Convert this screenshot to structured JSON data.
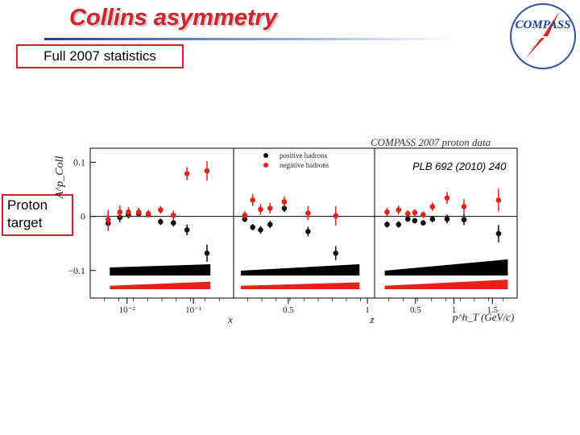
{
  "slide": {
    "title": "Collins asymmetry",
    "stats_label": "Full 2007 statistics",
    "target_label": "Proton target",
    "reference": "PLB 692 (2010) 240",
    "logo_text": "COMPASS"
  },
  "chart_data": {
    "type": "scatter",
    "title": "COMPASS 2007 proton data",
    "ylabel": "A^p_Coll",
    "ylim": [
      -0.145,
      0.12
    ],
    "yticks": [
      {
        "v": 0.1,
        "label": "0.1"
      },
      {
        "v": 0,
        "label": "0"
      },
      {
        "v": -0.1,
        "label": "−0.1"
      }
    ],
    "legend": [
      "positive hadrons",
      "negative hadrons"
    ],
    "legend_placement": "top-center",
    "colors": {
      "positive": "#111111",
      "negative": "#e2231a",
      "band_pos": "#000000",
      "band_neg": "#e2231a"
    },
    "panels": [
      {
        "xlabel": "x",
        "xscale": "log",
        "xlim": [
          0.0033,
          0.35
        ],
        "xticks": [
          {
            "v": 0.01,
            "label": "10⁻²"
          },
          {
            "v": 0.1,
            "label": "10⁻¹"
          }
        ],
        "series": [
          {
            "name": "positive hadrons",
            "x": [
              0.0052,
              0.0078,
              0.0105,
              0.015,
              0.021,
              0.032,
              0.05,
              0.08,
              0.16
            ],
            "y": [
              -0.013,
              -0.002,
              0.003,
              0.005,
              0.004,
              -0.01,
              -0.012,
              -0.025,
              -0.068
            ],
            "err": [
              0.013,
              0.009,
              0.007,
              0.006,
              0.006,
              0.006,
              0.007,
              0.01,
              0.016
            ]
          },
          {
            "name": "negative hadrons",
            "x": [
              0.0052,
              0.0078,
              0.0105,
              0.015,
              0.021,
              0.032,
              0.05,
              0.08,
              0.16
            ],
            "y": [
              -0.006,
              0.008,
              0.008,
              0.008,
              0.005,
              0.012,
              0.002,
              0.079,
              0.084
            ],
            "err": [
              0.018,
              0.012,
              0.009,
              0.008,
              0.007,
              0.007,
              0.009,
              0.012,
              0.018
            ]
          }
        ],
        "band_pos": [
          [
            0.0055,
            0.0009,
            0.01
          ],
          [
            0.18,
            0.0009,
            0.014
          ]
        ],
        "band_neg": [
          [
            0.0055,
            0.0009,
            0.005
          ],
          [
            0.18,
            0.0009,
            0.011
          ]
        ]
      },
      {
        "xlabel": "z",
        "xscale": "linear",
        "xlim": [
          0.18,
          1.02
        ],
        "xticks": [
          {
            "v": 0.5,
            "label": "0.5"
          },
          {
            "v": 1,
            "label": "1"
          }
        ],
        "series": [
          {
            "name": "positive hadrons",
            "x": [
              0.225,
              0.275,
              0.325,
              0.385,
              0.475,
              0.625,
              0.8
            ],
            "y": [
              -0.005,
              -0.02,
              -0.025,
              -0.015,
              0.015,
              -0.028,
              -0.068
            ],
            "err": [
              0.006,
              0.006,
              0.007,
              0.007,
              0.007,
              0.009,
              0.013
            ]
          },
          {
            "name": "negative hadrons",
            "x": [
              0.225,
              0.275,
              0.325,
              0.385,
              0.475,
              0.625,
              0.8
            ],
            "y": [
              0.002,
              0.03,
              0.013,
              0.015,
              0.027,
              0.006,
              0.001
            ],
            "err": [
              0.008,
              0.011,
              0.01,
              0.01,
              0.01,
              0.013,
              0.018
            ]
          }
        ],
        "band_pos": [
          [
            0.2,
            0.0009,
            0.006
          ],
          [
            0.95,
            0.0009,
            0.014
          ]
        ],
        "band_neg": [
          [
            0.2,
            0.0009,
            0.005
          ],
          [
            0.95,
            0.0009,
            0.01
          ]
        ]
      },
      {
        "xlabel": "p^h_T (GeV/c)",
        "xscale": "linear",
        "xlim": [
          0.02,
          1.78
        ],
        "xticks": [
          {
            "v": 0.5,
            "label": "0.5"
          },
          {
            "v": 1,
            "label": "1"
          },
          {
            "v": 1.5,
            "label": "1.5"
          }
        ],
        "series": [
          {
            "name": "positive hadrons",
            "x": [
              0.13,
              0.28,
              0.4,
              0.49,
              0.6,
              0.72,
              0.91,
              1.13,
              1.58
            ],
            "y": [
              -0.015,
              -0.015,
              -0.005,
              -0.008,
              -0.012,
              -0.005,
              -0.005,
              -0.006,
              -0.032
            ],
            "err": [
              0.006,
              0.006,
              0.005,
              0.005,
              0.005,
              0.006,
              0.008,
              0.01,
              0.016
            ]
          },
          {
            "name": "negative hadrons",
            "x": [
              0.13,
              0.28,
              0.4,
              0.49,
              0.6,
              0.72,
              0.91,
              1.13,
              1.58
            ],
            "y": [
              0.008,
              0.012,
              0.005,
              0.007,
              0.003,
              0.018,
              0.034,
              0.018,
              0.03
            ],
            "err": [
              0.008,
              0.008,
              0.006,
              0.006,
              0.006,
              0.008,
              0.011,
              0.014,
              0.021
            ]
          }
        ],
        "band_pos": [
          [
            0.1,
            0.0009,
            0.006
          ],
          [
            1.7,
            0.0009,
            0.02
          ]
        ],
        "band_neg": [
          [
            0.1,
            0.0009,
            0.005
          ],
          [
            1.7,
            0.0009,
            0.014
          ]
        ]
      }
    ]
  }
}
